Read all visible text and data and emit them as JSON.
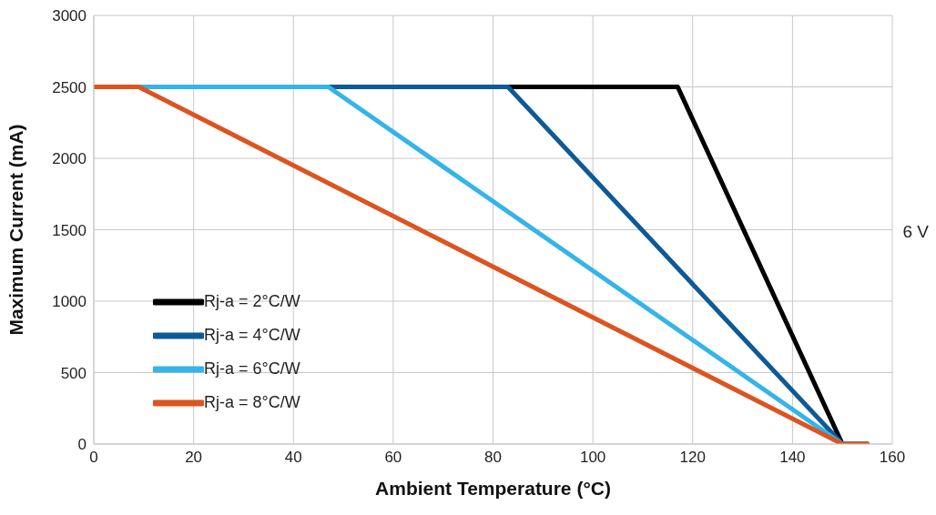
{
  "chart_data": {
    "type": "line",
    "xlabel": "Ambient Temperature (°C)",
    "ylabel": "Maximum Current (mA)",
    "annotations": [
      "6 V"
    ],
    "xlim": [
      0,
      160
    ],
    "xticks": [
      0,
      20,
      40,
      60,
      80,
      100,
      120,
      140,
      160
    ],
    "ylim": [
      0,
      3000
    ],
    "yticks": [
      0,
      500,
      1000,
      1500,
      2000,
      2500,
      3000
    ],
    "grid": true,
    "legend": "bottom left",
    "marker": "none",
    "line_style": "solid",
    "series": [
      {
        "name": "Rj-a = 2°C/W",
        "color": "#000000",
        "x": [
          0,
          117,
          150,
          155
        ],
        "values": [
          2500,
          2500,
          0,
          0
        ]
      },
      {
        "name": "Rj-a = 4°C/W",
        "color": "#0e5a96",
        "x": [
          0,
          83,
          150,
          155
        ],
        "values": [
          2500,
          2500,
          0,
          0
        ]
      },
      {
        "name": "Rj-a = 6°C/W",
        "color": "#35b4e8",
        "x": [
          0,
          47,
          150,
          155
        ],
        "values": [
          2500,
          2500,
          0,
          0
        ]
      },
      {
        "name": "Rj-a = 8°C/W",
        "color": "#dc5420",
        "x": [
          0,
          9,
          150,
          155
        ],
        "values": [
          2500,
          2500,
          0,
          0
        ]
      }
    ]
  }
}
